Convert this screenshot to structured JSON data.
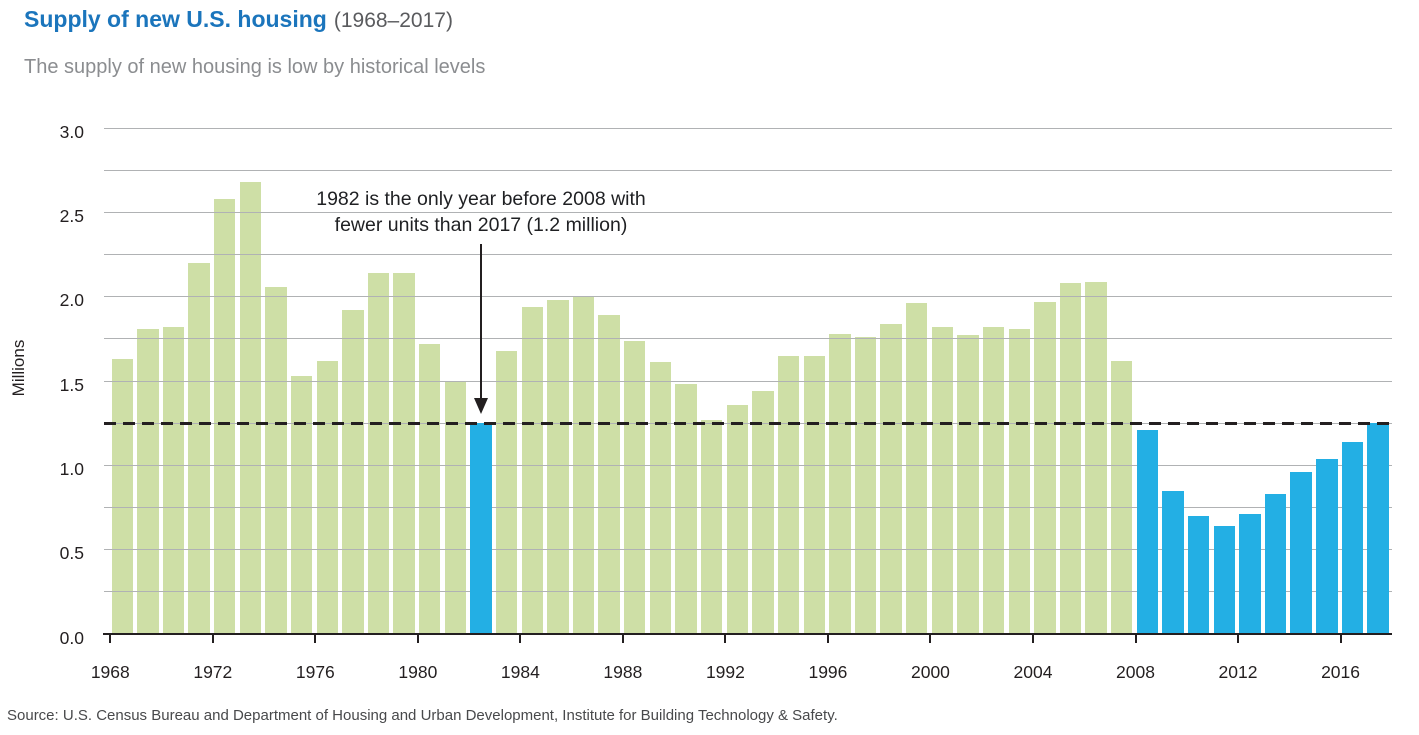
{
  "header": {
    "title": "Supply of new U.S. housing",
    "title_suffix": "(1968–2017)",
    "subtitle": "The supply of new housing is low by historical levels"
  },
  "chart_data": {
    "type": "bar",
    "title": "Supply of new U.S. housing (1968–2017)",
    "xlabel": "",
    "ylabel": "Millions",
    "ylim": [
      0.0,
      3.0
    ],
    "gridline_step": 0.25,
    "grid": true,
    "y_tick_labels": [
      "0.0",
      "0.5",
      "1.0",
      "1.5",
      "2.0",
      "2.5",
      "3.0"
    ],
    "x_tick_labels": [
      "1968",
      "1972",
      "1976",
      "1980",
      "1984",
      "1988",
      "1992",
      "1996",
      "2000",
      "2004",
      "2008",
      "2012",
      "2016"
    ],
    "categories": [
      1968,
      1969,
      1970,
      1971,
      1972,
      1973,
      1974,
      1975,
      1976,
      1977,
      1978,
      1979,
      1980,
      1981,
      1982,
      1983,
      1984,
      1985,
      1986,
      1987,
      1988,
      1989,
      1990,
      1991,
      1992,
      1993,
      1994,
      1995,
      1996,
      1997,
      1998,
      1999,
      2000,
      2001,
      2002,
      2003,
      2004,
      2005,
      2006,
      2007,
      2008,
      2009,
      2010,
      2011,
      2012,
      2013,
      2014,
      2015,
      2016,
      2017
    ],
    "values": [
      1.63,
      1.81,
      1.82,
      2.2,
      2.58,
      2.68,
      2.06,
      1.53,
      1.62,
      1.92,
      2.14,
      2.14,
      1.72,
      1.5,
      1.25,
      1.68,
      1.94,
      1.98,
      2.0,
      1.89,
      1.74,
      1.61,
      1.48,
      1.27,
      1.36,
      1.44,
      1.65,
      1.65,
      1.78,
      1.76,
      1.84,
      1.96,
      1.82,
      1.77,
      1.82,
      1.81,
      1.97,
      2.08,
      2.09,
      1.62,
      1.21,
      0.85,
      0.7,
      0.64,
      0.71,
      0.83,
      0.96,
      1.04,
      1.14,
      1.25
    ],
    "highlighted_years": [
      1982,
      2008,
      2009,
      2010,
      2011,
      2012,
      2013,
      2014,
      2015,
      2016,
      2017
    ],
    "colors": {
      "bar_default": "#CEDFA6",
      "bar_highlight": "#23AFE4",
      "gridline": "#B0B2B4",
      "axis": "#231F20",
      "title_accent": "#1B75BC"
    },
    "reference_line": {
      "value": 1.25,
      "style": "dashed",
      "color": "#231F20"
    },
    "annotation": {
      "line1": "1982 is the only year before 2008 with",
      "line2": "fewer units than 2017 (1.2 million)",
      "target_year": 1982
    },
    "legend": null
  },
  "footer": {
    "source": "Source: U.S. Census Bureau and Department of Housing and Urban Development, Institute for Building Technology & Safety."
  }
}
